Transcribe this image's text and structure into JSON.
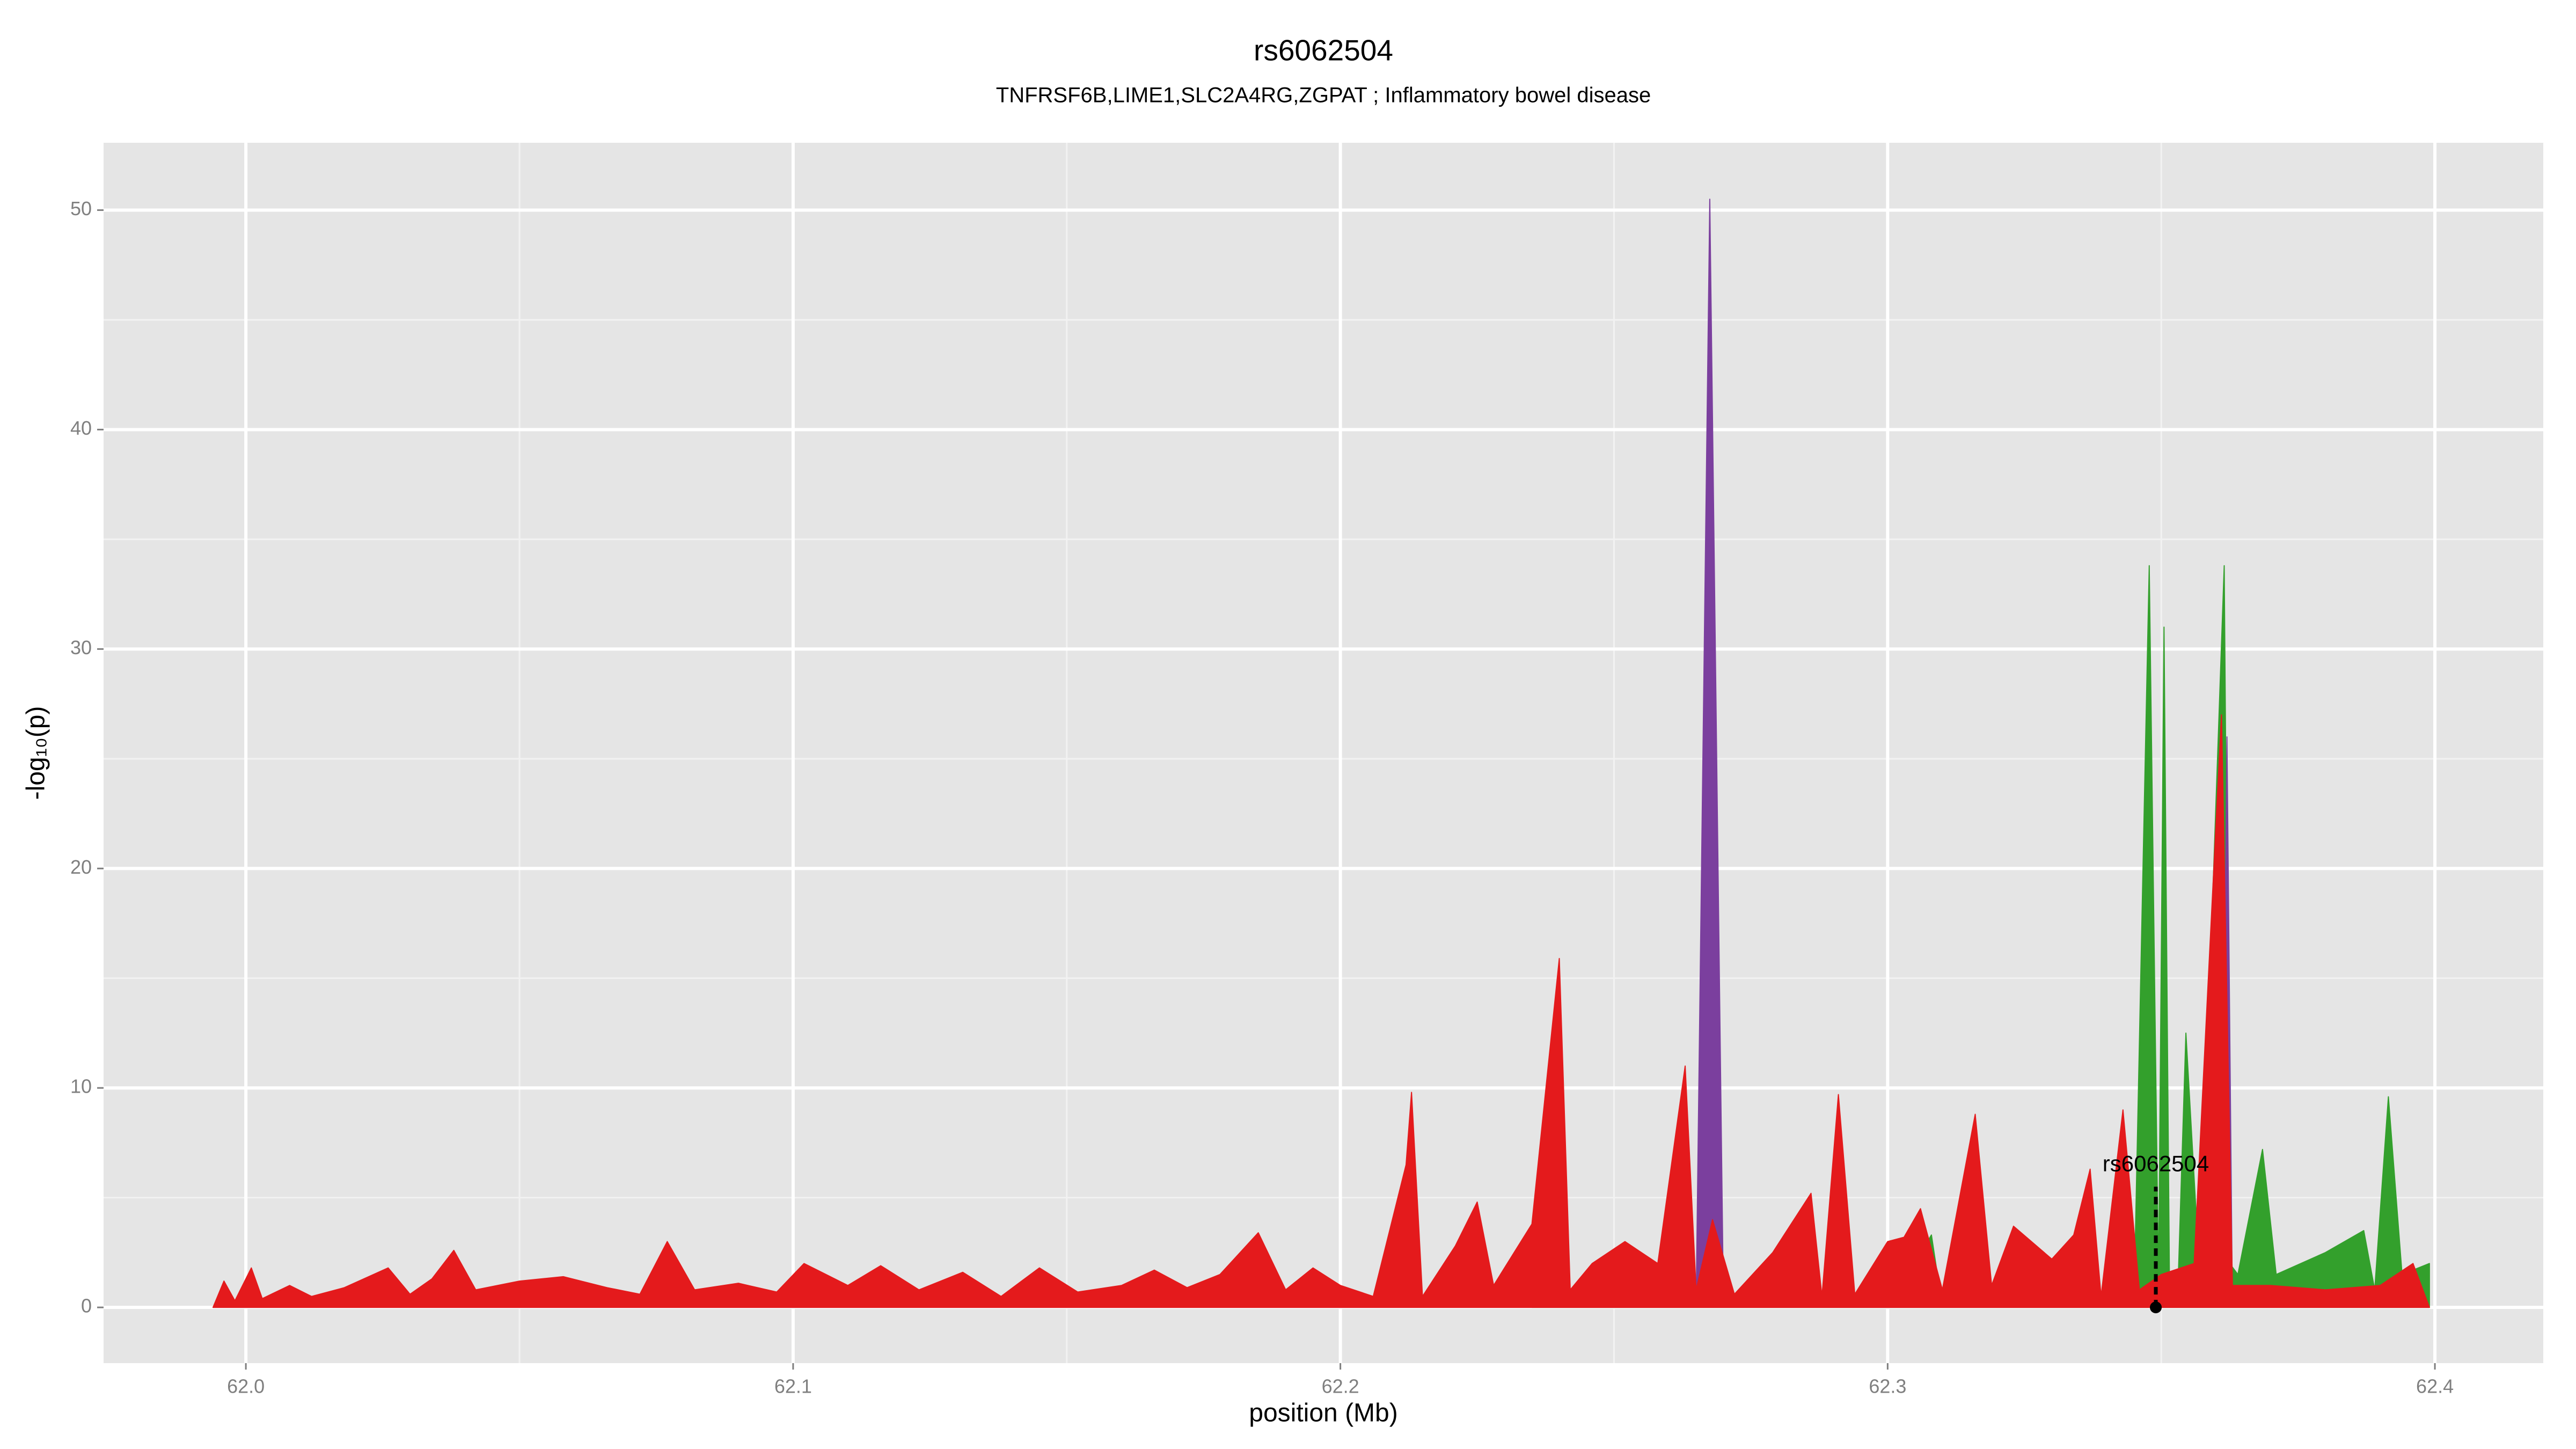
{
  "chart_data": {
    "type": "area",
    "title": "rs6062504",
    "subtitle": "TNFRSF6B,LIME1,SLC2A4RG,ZGPAT ; Inflammatory bowel disease",
    "x_label": "position (Mb)",
    "y_label": "-log₁₀(p)",
    "xlim": [
      61.974,
      62.4198
    ],
    "ylim": [
      -2.54,
      53.07
    ],
    "xticks": [
      {
        "value": 62,
        "label": "62.0"
      },
      62.1,
      62.2,
      62.3,
      62.4
    ],
    "yticks": [
      0,
      10,
      20,
      30,
      40,
      50
    ],
    "grid": true,
    "series": [
      {
        "color": "#33a02c",
        "x": [
          62.235,
          62.2385,
          62.24,
          62.3,
          62.308,
          62.31,
          62.345,
          62.3478,
          62.3495,
          62.3505,
          62.3515,
          62.353,
          62.3545,
          62.357,
          62.3615,
          62.3625,
          62.364,
          62.3685,
          62.371,
          62.38,
          62.387,
          62.389,
          62.3915,
          62.394,
          62.399
        ],
        "values": [
          0,
          3.0,
          0,
          0,
          3.3,
          0,
          0,
          33.8,
          1,
          31.0,
          1,
          0.5,
          12.5,
          1.5,
          33.8,
          2,
          1.5,
          7.2,
          1.5,
          2.5,
          3.5,
          0.8,
          9.6,
          1.5,
          2
        ]
      },
      {
        "color": "#7b3f9e",
        "x": [
          61.994,
          62.239,
          62.2405,
          62.242,
          62.265,
          62.2675,
          62.27,
          62.361,
          62.362,
          62.363,
          62.399
        ],
        "values": [
          0,
          0,
          9,
          0,
          0,
          50.5,
          0,
          0,
          26,
          0,
          0
        ]
      },
      {
        "color": "#e41a1c",
        "x": [
          61.994,
          61.996,
          61.998,
          62.001,
          62.003,
          62.008,
          62.012,
          62.018,
          62.026,
          62.03,
          62.034,
          62.038,
          62.042,
          62.05,
          62.058,
          62.066,
          62.072,
          62.077,
          62.082,
          62.09,
          62.097,
          62.102,
          62.11,
          62.116,
          62.123,
          62.131,
          62.138,
          62.145,
          62.152,
          62.16,
          62.166,
          62.172,
          62.178,
          62.185,
          62.19,
          62.195,
          62.2,
          62.206,
          62.212,
          62.213,
          62.215,
          62.221,
          62.225,
          62.228,
          62.235,
          62.24,
          62.242,
          62.246,
          62.252,
          62.258,
          62.263,
          62.265,
          62.268,
          62.272,
          62.279,
          62.286,
          62.288,
          62.291,
          62.294,
          62.3,
          62.303,
          62.306,
          62.31,
          62.316,
          62.319,
          62.323,
          62.33,
          62.334,
          62.337,
          62.339,
          62.343,
          62.346,
          62.35,
          62.356,
          62.361,
          62.363,
          62.37,
          62.38,
          62.39,
          62.396,
          62.399
        ],
        "values": [
          0,
          1.2,
          0.3,
          1.8,
          0.4,
          1.0,
          0.5,
          0.9,
          1.8,
          0.6,
          1.3,
          2.6,
          0.8,
          1.2,
          1.4,
          0.9,
          0.6,
          3.0,
          0.8,
          1.1,
          0.7,
          2.0,
          1.0,
          1.9,
          0.8,
          1.6,
          0.5,
          1.8,
          0.7,
          1.0,
          1.7,
          0.9,
          1.5,
          3.4,
          0.8,
          1.8,
          1.0,
          0.5,
          6.5,
          9.8,
          0.5,
          2.8,
          4.8,
          1.0,
          3.8,
          15.9,
          0.8,
          2.0,
          3.0,
          2.0,
          11.0,
          0.8,
          4.0,
          0.6,
          2.5,
          5.2,
          0.5,
          9.7,
          0.6,
          3.0,
          3.2,
          4.5,
          0.8,
          8.8,
          1.0,
          3.7,
          2.2,
          3.3,
          6.3,
          0.5,
          9.0,
          0.8,
          1.5,
          2.0,
          27.0,
          1.0,
          1.0,
          0.8,
          1.0,
          2.0,
          0
        ]
      }
    ],
    "annotation": {
      "label": "rs6062504",
      "x": 62.349,
      "y": 5.5
    }
  }
}
